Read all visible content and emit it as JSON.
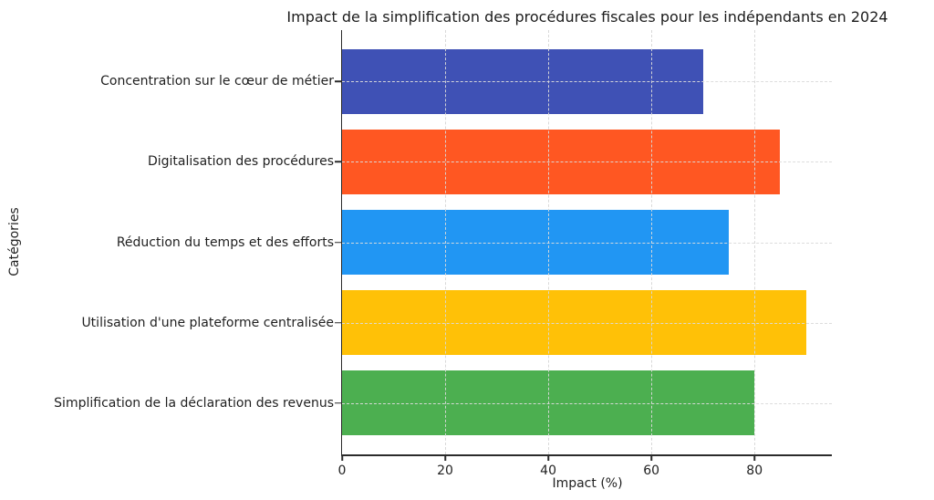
{
  "chart_data": {
    "type": "bar",
    "orientation": "horizontal",
    "title": "Impact de la simplification des procédures fiscales pour les indépendants en 2024",
    "xlabel": "Impact (%)",
    "ylabel": "Catégories",
    "categories": [
      "Concentration sur le cœur de métier",
      "Digitalisation des procédures",
      "Réduction du temps et des efforts",
      "Utilisation d'une plateforme centralisée",
      "Simplification de la déclaration des revenus"
    ],
    "values": [
      70,
      85,
      75,
      90,
      80
    ],
    "colors": [
      "#3F51B5",
      "#FF5722",
      "#2196F3",
      "#FFC107",
      "#4CAF50"
    ],
    "xlim": [
      0,
      95
    ],
    "xticks": [
      0,
      20,
      40,
      60,
      80
    ],
    "grid": true,
    "grid_style": "dashed",
    "legend": "none"
  }
}
